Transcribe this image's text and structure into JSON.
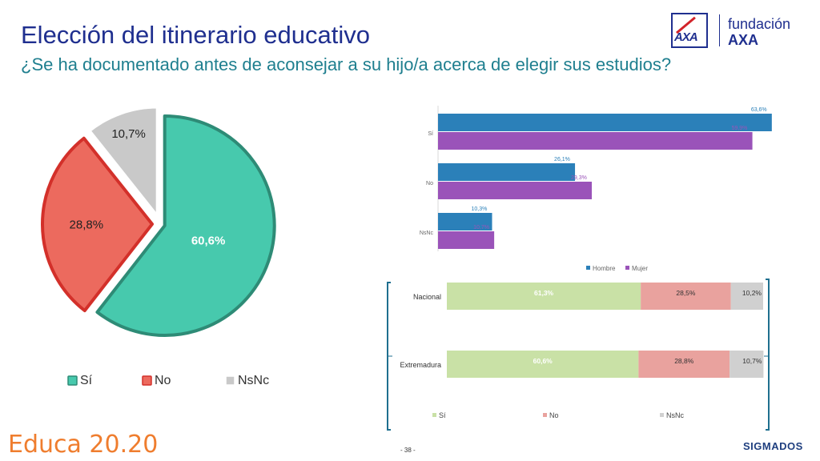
{
  "header": {
    "title": "Elección del itinerario educativo",
    "subtitle": "¿Se ha documentado antes de aconsejar a su hijo/a acerca de elegir sus estudios?"
  },
  "logo": {
    "brand": "AXA",
    "line1": "fundación",
    "line2": "AXA"
  },
  "footer": {
    "left": "Educa 20.20",
    "page": "- 38 -",
    "right": "SIGMADOS"
  },
  "colors": {
    "pie_si": "#47c9ad",
    "pie_no": "#ec6a5e",
    "pie_nsnc": "#c9c9c9",
    "pie_si_border": "#2e8b76",
    "pie_no_border": "#d3302a",
    "pie_nsnc_border": "#ffffff",
    "hombre": "#2b80b9",
    "mujer": "#9a53b9",
    "stack_si": "#c9e1a6",
    "stack_no": "#e9a29e",
    "stack_nsnc": "#d0d0d0",
    "bracket": "#1f6f8f"
  },
  "chart_data": [
    {
      "type": "pie",
      "categories": [
        "Sí",
        "No",
        "NsNc"
      ],
      "values": [
        60.6,
        28.8,
        10.7
      ],
      "labels": [
        "60,6%",
        "28,8%",
        "10,7%"
      ],
      "legend": [
        "Sí",
        "No",
        "NsNc"
      ]
    },
    {
      "type": "bar",
      "orientation": "horizontal",
      "categories": [
        "Sí",
        "No",
        "NsNc"
      ],
      "series": [
        {
          "name": "Hombre",
          "values": [
            63.6,
            26.1,
            10.3
          ],
          "labels": [
            "63,6%",
            "26,1%",
            "10,3%"
          ]
        },
        {
          "name": "Mujer",
          "values": [
            59.9,
            29.3,
            10.7
          ],
          "labels": [
            "59,9%",
            "29,3%",
            "10,7%"
          ]
        }
      ],
      "xlim": [
        0,
        65
      ],
      "legend_position": "bottom"
    },
    {
      "type": "bar",
      "orientation": "horizontal",
      "stacked": true,
      "categories": [
        "Nacional",
        "Extremadura"
      ],
      "series": [
        {
          "name": "Sí",
          "values": [
            61.3,
            60.6
          ],
          "labels": [
            "61,3%",
            "60,6%"
          ]
        },
        {
          "name": "No",
          "values": [
            28.5,
            28.8
          ],
          "labels": [
            "28,5%",
            "28,8%"
          ]
        },
        {
          "name": "NsNc",
          "values": [
            10.2,
            10.7
          ],
          "labels": [
            "10,2%",
            "10,7%"
          ]
        }
      ],
      "legend_position": "bottom"
    }
  ]
}
